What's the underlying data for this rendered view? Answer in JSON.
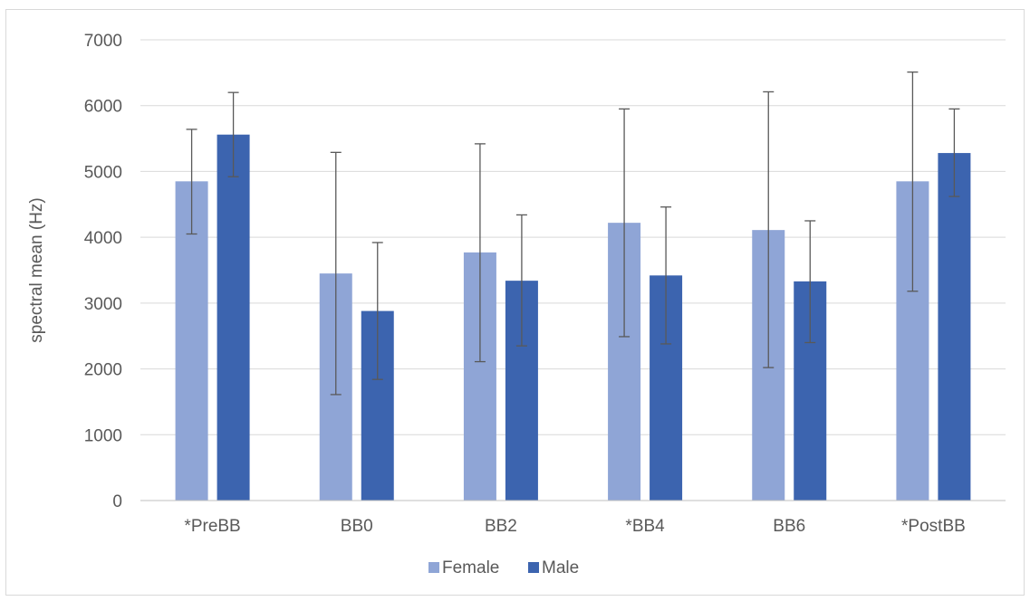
{
  "chart_data": {
    "type": "bar",
    "title": "",
    "xlabel": "",
    "ylabel": "spectral mean (Hz)",
    "ylim": [
      0,
      7000
    ],
    "yticks": [
      0,
      1000,
      2000,
      3000,
      4000,
      5000,
      6000,
      7000
    ],
    "grid": true,
    "legend_position": "bottom",
    "categories": [
      "*PreBB",
      "BB0",
      "BB2",
      "*BB4",
      "BB6",
      "*PostBB"
    ],
    "series": [
      {
        "name": "Female",
        "color": "#8FA5D6",
        "values": [
          4850,
          3450,
          3770,
          4220,
          4110,
          4850
        ],
        "error_low": [
          4050,
          1610,
          2110,
          2490,
          2020,
          3180
        ],
        "error_high": [
          5640,
          5290,
          5420,
          5950,
          6210,
          6510
        ]
      },
      {
        "name": "Male",
        "color": "#3C64AF",
        "values": [
          5560,
          2880,
          3340,
          3420,
          3330,
          5280
        ],
        "error_low": [
          4920,
          1840,
          2350,
          2380,
          2400,
          4620
        ],
        "error_high": [
          6200,
          3920,
          4340,
          4460,
          4250,
          5950
        ]
      }
    ]
  },
  "colors": {
    "gridline": "#d9d9d9",
    "axis_line": "#bfbfbf",
    "error_bar": "#595959",
    "text": "#595959"
  }
}
